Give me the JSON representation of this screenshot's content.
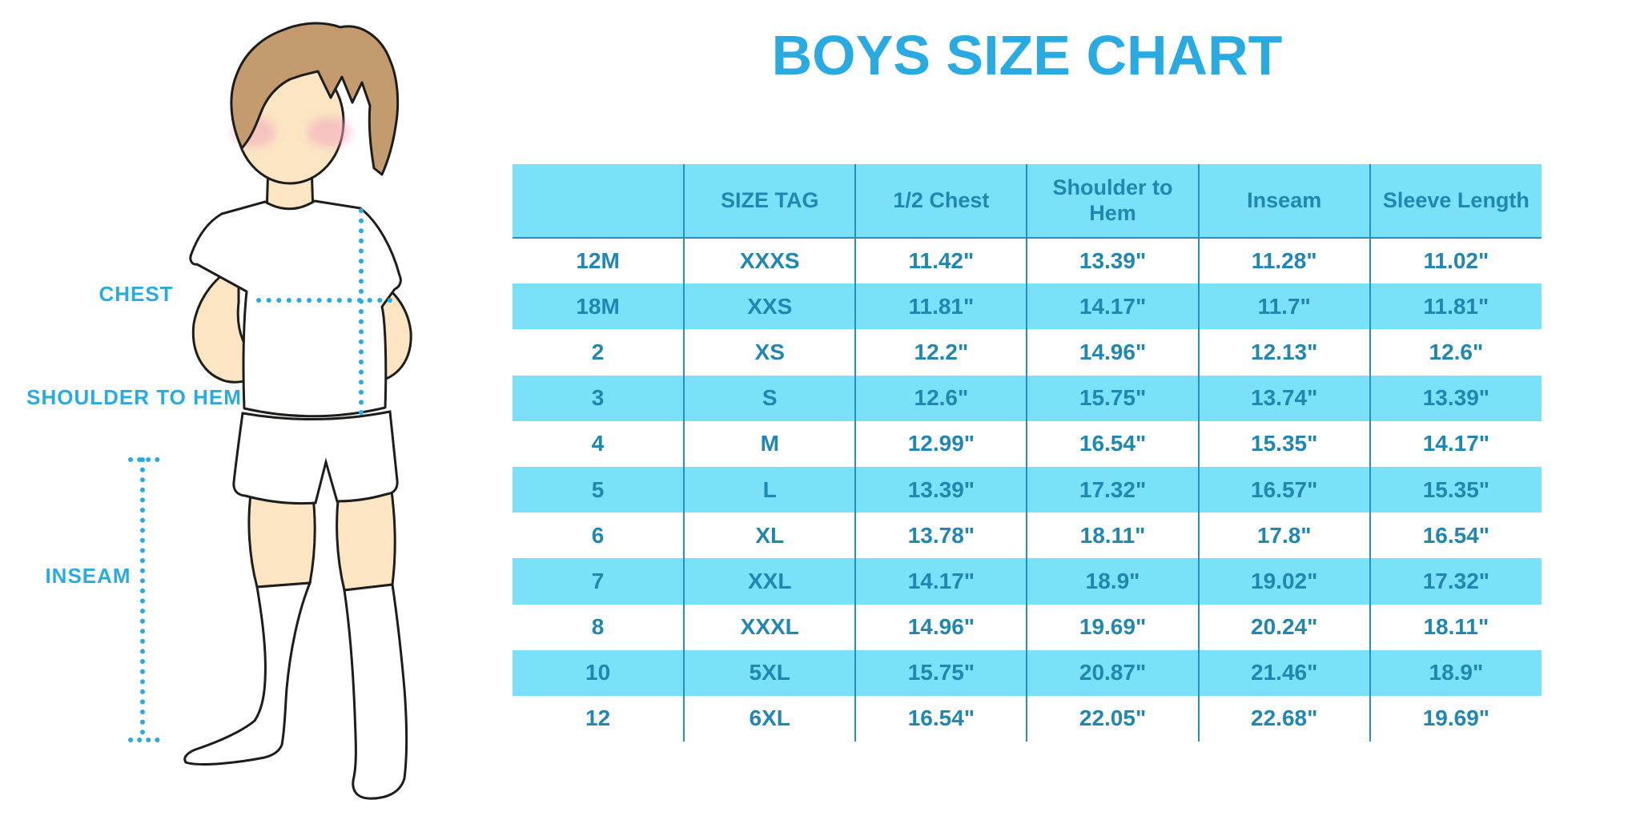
{
  "title": "BOYS SIZE CHART",
  "illustration": {
    "chest_label": "CHEST",
    "shoulder_to_hem_label": "SHOULDER TO HEM",
    "inseam_label": "INSEAM"
  },
  "colors": {
    "accent_blue": "#29ABE2",
    "table_stripe": "#7BE1F8",
    "table_text": "#1F87B2",
    "table_lines": "#2490BD",
    "skin": "#FBE5C3",
    "hair": "#C49B6E",
    "cheeks": "#F3A9BE",
    "outline": "#1D1D1B"
  },
  "chart_data": {
    "type": "table",
    "title": "BOYS SIZE CHART",
    "columns": [
      "",
      "SIZE TAG",
      "1/2 Chest",
      "Shoulder to Hem",
      "Inseam",
      "Sleeve Length"
    ],
    "rows": [
      [
        "12M",
        "XXXS",
        "11.42\"",
        "13.39\"",
        "11.28\"",
        "11.02\""
      ],
      [
        "18M",
        "XXS",
        "11.81\"",
        "14.17\"",
        "11.7\"",
        "11.81\""
      ],
      [
        "2",
        "XS",
        "12.2\"",
        "14.96\"",
        "12.13\"",
        "12.6\""
      ],
      [
        "3",
        "S",
        "12.6\"",
        "15.75\"",
        "13.74\"",
        "13.39\""
      ],
      [
        "4",
        "M",
        "12.99\"",
        "16.54\"",
        "15.35\"",
        "14.17\""
      ],
      [
        "5",
        "L",
        "13.39\"",
        "17.32\"",
        "16.57\"",
        "15.35\""
      ],
      [
        "6",
        "XL",
        "13.78\"",
        "18.11\"",
        "17.8\"",
        "16.54\""
      ],
      [
        "7",
        "XXL",
        "14.17\"",
        "18.9\"",
        "19.02\"",
        "17.32\""
      ],
      [
        "8",
        "XXXL",
        "14.96\"",
        "19.69\"",
        "20.24\"",
        "18.11\""
      ],
      [
        "10",
        "5XL",
        "15.75\"",
        "20.87\"",
        "21.46\"",
        "18.9\""
      ],
      [
        "12",
        "6XL",
        "16.54\"",
        "22.05\"",
        "22.68\"",
        "19.69\""
      ]
    ]
  }
}
